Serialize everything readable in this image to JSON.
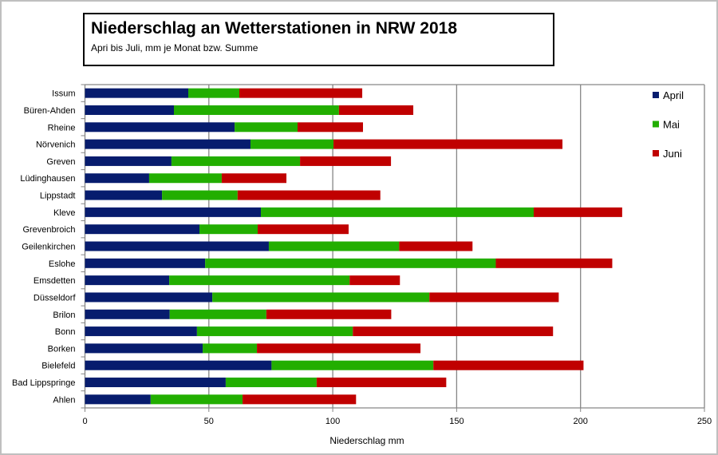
{
  "chart_data": {
    "type": "bar",
    "orientation": "horizontal",
    "stacked": true,
    "title": "Niederschlag an Wetterstationen in NRW 2018",
    "subtitle": "Apri bis Juli, mm je Monat bzw. Summe",
    "xlabel": "Niederschlag mm",
    "ylabel": "",
    "xlim": [
      0,
      250
    ],
    "xticks": [
      0,
      50,
      100,
      150,
      200,
      250
    ],
    "grid": true,
    "legend_position": "right",
    "categories": [
      "Issum",
      "Büren-Ahden",
      "Rheine",
      "Nörvenich",
      "Greven",
      "Lüdinghausen",
      "Lippstadt",
      "Kleve",
      "Grevenbroich",
      "Geilenkirchen",
      "Eslohe",
      "Emsdetten",
      "Düsseldorf",
      "Brilon",
      "Bonn",
      "Borken",
      "Bielefeld",
      "Bad Lippspringe",
      "Ahlen"
    ],
    "series": [
      {
        "name": "April",
        "color": "#071c6e",
        "values": [
          41.7,
          35.9,
          60.4,
          66.8,
          34.9,
          25.9,
          31.1,
          71.0,
          46.2,
          74.2,
          48.5,
          34.0,
          51.4,
          34.2,
          45.2,
          47.5,
          75.3,
          56.8,
          26.5
        ]
      },
      {
        "name": "Mai",
        "color": "#22ae00",
        "values": [
          20.6,
          66.6,
          25.4,
          33.5,
          51.9,
          29.3,
          30.5,
          110.1,
          23.5,
          52.6,
          117.3,
          72.8,
          87.6,
          39.0,
          62.9,
          21.9,
          65.3,
          36.7,
          37.1
        ]
      },
      {
        "name": "Juni",
        "color": "#c00000",
        "values": [
          49.6,
          30.0,
          26.4,
          92.4,
          36.7,
          26.1,
          57.6,
          35.7,
          36.7,
          29.6,
          47.0,
          20.3,
          52.2,
          50.4,
          80.8,
          66.0,
          60.6,
          52.3,
          45.8
        ]
      }
    ]
  }
}
